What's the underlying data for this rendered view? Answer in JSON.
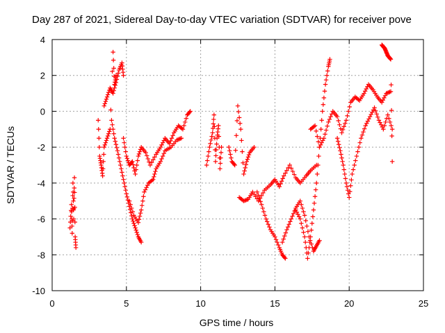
{
  "chart_data": {
    "type": "scatter",
    "title": "Day 287 of 2021, Sidereal Day-to-day VTEC variation (SDTVAR) for receiver pove",
    "xlabel": "GPS time / hours",
    "ylabel": "SDTVAR / TECUs",
    "xlim": [
      0,
      25
    ],
    "ylim": [
      -10,
      4
    ],
    "xticks": [
      0,
      5,
      10,
      15,
      20,
      25
    ],
    "yticks": [
      -10,
      -8,
      -6,
      -4,
      -2,
      0,
      2,
      4
    ],
    "x_tick_labels": [
      "0",
      "5",
      "10",
      "15",
      "20",
      "25"
    ],
    "y_tick_labels": [
      "-10",
      "-8",
      "-6",
      "-4",
      "-2",
      "0",
      "2",
      "4"
    ],
    "grid": true,
    "marker": "plus",
    "color": "#ff0000",
    "series": [
      {
        "name": "SDTVAR",
        "segments": [
          {
            "x": [
              1.2,
              1.3,
              1.35,
              1.4,
              1.45,
              1.5,
              1.55,
              1.6
            ],
            "y": [
              -6.5,
              -5.2,
              -6.8,
              -4.0,
              -6.0,
              -3.7,
              -7.0,
              -7.6
            ]
          },
          {
            "x": [
              3.1,
              3.2,
              3.3,
              3.4,
              3.5,
              3.7,
              3.9,
              4.1,
              4.2,
              4.3
            ],
            "y": [
              -0.5,
              -2.5,
              -3.0,
              -3.6,
              -2.0,
              -1.5,
              -1.0,
              3.3,
              1.5,
              2.0
            ]
          },
          {
            "x": [
              3.5,
              3.7,
              3.9,
              4.1,
              4.3,
              4.5,
              4.7,
              4.8
            ],
            "y": [
              0.3,
              0.8,
              1.3,
              1.0,
              1.6,
              2.3,
              2.7,
              2.0
            ]
          },
          {
            "x": [
              4.0,
              4.2,
              4.4,
              4.6,
              4.8,
              5.0,
              5.2,
              5.4,
              5.6,
              5.8,
              6.0
            ],
            "y": [
              -0.5,
              -1.5,
              -2.2,
              -3.0,
              -3.8,
              -4.6,
              -5.3,
              -6.0,
              -6.5,
              -7.0,
              -7.3
            ]
          },
          {
            "x": [
              4.8,
              5.0,
              5.2,
              5.4,
              5.6,
              5.8,
              6.0,
              6.3,
              6.6,
              7.0,
              7.3,
              7.6,
              7.9,
              8.2,
              8.5,
              8.8,
              9.1,
              9.3
            ],
            "y": [
              -1.5,
              -2.5,
              -3.0,
              -2.8,
              -3.5,
              -2.5,
              -2.0,
              -2.3,
              -3.0,
              -2.4,
              -2.0,
              -1.5,
              -1.8,
              -1.2,
              -0.8,
              -1.0,
              -0.2,
              0.0
            ]
          },
          {
            "x": [
              5.2,
              5.5,
              5.8,
              6.0,
              6.2,
              6.5,
              6.8,
              7.0,
              7.3,
              7.6,
              8.0,
              8.4,
              8.7
            ],
            "y": [
              -5.0,
              -5.8,
              -6.2,
              -5.5,
              -4.5,
              -4.0,
              -3.8,
              -3.2,
              -2.8,
              -2.2,
              -2.0,
              -1.6,
              -1.5
            ]
          },
          {
            "x": [
              10.4,
              10.6,
              10.8,
              10.9,
              11.0,
              11.1,
              11.2,
              11.3,
              11.4
            ],
            "y": [
              -3.0,
              -2.0,
              -1.2,
              -0.2,
              -2.8,
              -1.5,
              -0.8,
              -3.2,
              -2.0
            ]
          },
          {
            "x": [
              11.9,
              12.1,
              12.3,
              12.5,
              12.7,
              12.9,
              13.1,
              13.3,
              13.6
            ],
            "y": [
              -2.0,
              -2.8,
              -3.0,
              0.3,
              -1.0,
              -3.5,
              -2.8,
              -2.3,
              -2.0
            ]
          },
          {
            "x": [
              12.6,
              12.9,
              13.2,
              13.5,
              13.9,
              14.3,
              14.7,
              15.0,
              15.3,
              15.6,
              16.0,
              16.4,
              16.7,
              17.1,
              17.4,
              17.8
            ],
            "y": [
              -4.8,
              -5.0,
              -4.9,
              -4.5,
              -5.0,
              -4.4,
              -4.1,
              -3.8,
              -4.2,
              -3.6,
              -3.0,
              -3.7,
              -4.0,
              -3.6,
              -3.3,
              -3.0
            ]
          },
          {
            "x": [
              13.8,
              14.1,
              14.4,
              14.7,
              15.0,
              15.3,
              15.5,
              15.7
            ],
            "y": [
              -4.5,
              -5.2,
              -6.0,
              -6.6,
              -7.0,
              -7.6,
              -8.0,
              -8.2
            ]
          },
          {
            "x": [
              15.5,
              15.8,
              16.1,
              16.4,
              16.7,
              17.0,
              17.3,
              17.6,
              17.8,
              18.0
            ],
            "y": [
              -7.3,
              -6.6,
              -6.0,
              -5.4,
              -5.0,
              -5.8,
              -7.0,
              -7.8,
              -7.5,
              -7.2
            ]
          },
          {
            "x": [
              16.4,
              16.7,
              17.0,
              17.2,
              17.4,
              17.6,
              17.8,
              18.0,
              18.2,
              18.4,
              18.6,
              18.7
            ],
            "y": [
              -5.5,
              -6.0,
              -7.0,
              -8.2,
              -7.0,
              -5.5,
              -4.0,
              -2.0,
              0.0,
              1.5,
              2.5,
              2.9
            ]
          },
          {
            "x": [
              17.4,
              17.7,
              18.0,
              18.3,
              18.6,
              18.9,
              19.2,
              19.5,
              19.8,
              20.1,
              20.4,
              20.7,
              21.0,
              21.3,
              21.6,
              21.9,
              22.2,
              22.5,
              22.8
            ],
            "y": [
              -1.0,
              -0.8,
              -2.0,
              -1.5,
              -0.6,
              0.0,
              -0.3,
              -1.2,
              -0.5,
              0.5,
              0.8,
              0.6,
              1.0,
              1.5,
              1.2,
              0.8,
              0.5,
              1.0,
              1.1
            ]
          },
          {
            "x": [
              19.2,
              19.4,
              19.6,
              19.8,
              20.0,
              20.2,
              20.5,
              20.8,
              21.1,
              21.4,
              21.7,
              22.0,
              22.3,
              22.6,
              22.9
            ],
            "y": [
              -1.5,
              -2.2,
              -3.0,
              -4.0,
              -4.8,
              -3.5,
              -2.5,
              -1.5,
              -0.8,
              -0.3,
              0.2,
              -0.5,
              -1.0,
              -0.2,
              -1.0
            ]
          },
          {
            "x": [
              22.2,
              22.3,
              22.4,
              22.5,
              22.6,
              22.7,
              22.8,
              22.9
            ],
            "y": [
              3.7,
              3.6,
              3.5,
              3.3,
              3.1,
              3.0,
              2.9,
              -2.8
            ]
          }
        ]
      }
    ]
  }
}
